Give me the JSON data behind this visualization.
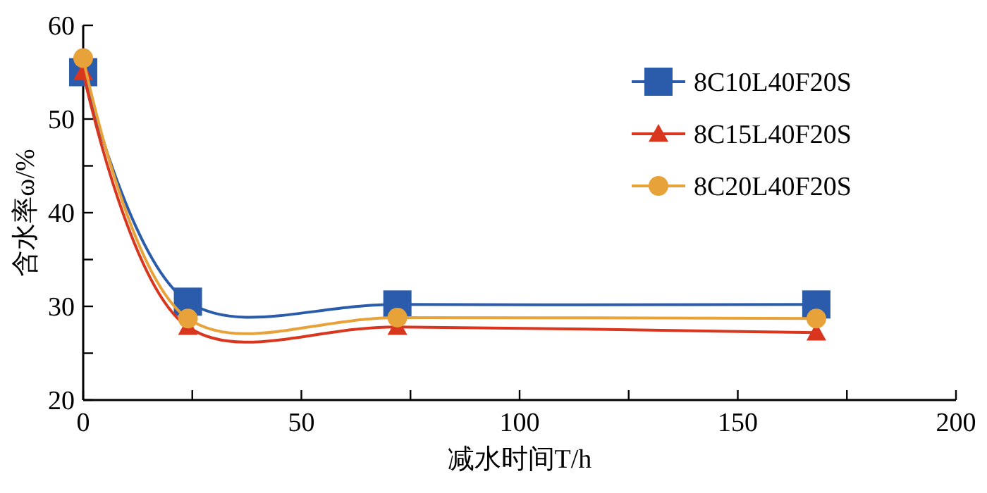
{
  "chart_data": {
    "type": "line",
    "xlabel": "减水时间T/h",
    "ylabel": "含水率ω/%",
    "x": [
      0,
      24,
      72,
      168
    ],
    "series": [
      {
        "name": "8C10L40F20S",
        "color": "#2a5cab",
        "marker": "square",
        "values": [
          55,
          30.5,
          30.2,
          30.2
        ]
      },
      {
        "name": "8C15L40F20S",
        "color": "#d9361f",
        "marker": "triangle",
        "values": [
          55,
          27.8,
          27.8,
          27.2
        ]
      },
      {
        "name": "8C20L40F20S",
        "color": "#e8a23a",
        "marker": "circle",
        "values": [
          56.5,
          28.7,
          28.8,
          28.7
        ]
      }
    ],
    "xlim": [
      0,
      200
    ],
    "xticks": [
      0,
      {
        "value": 25,
        "label": null
      },
      50,
      {
        "value": 75,
        "label": null
      },
      100,
      {
        "value": 125,
        "label": null
      },
      150,
      {
        "value": 175,
        "label": null
      },
      200
    ],
    "ylim": [
      20,
      60
    ],
    "yticks": [
      20,
      {
        "value": 25,
        "label": null
      },
      30,
      {
        "value": 35,
        "label": null
      },
      40,
      {
        "value": 45,
        "label": null
      },
      50,
      {
        "value": 55,
        "label": null
      },
      60
    ],
    "grid": false,
    "legend": "top right",
    "line_style": "solid"
  }
}
